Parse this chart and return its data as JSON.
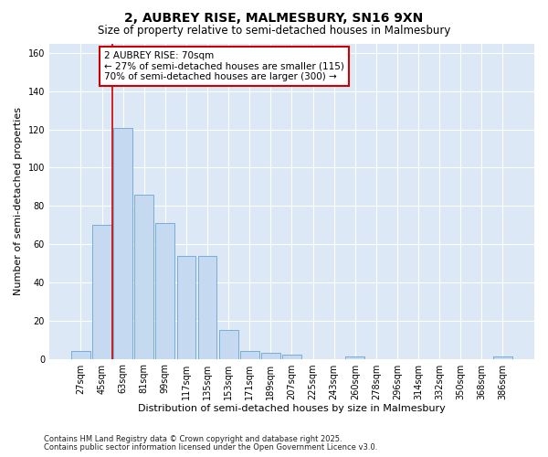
{
  "title": "2, AUBREY RISE, MALMESBURY, SN16 9XN",
  "subtitle": "Size of property relative to semi-detached houses in Malmesbury",
  "xlabel": "Distribution of semi-detached houses by size in Malmesbury",
  "ylabel": "Number of semi-detached properties",
  "categories": [
    "27sqm",
    "45sqm",
    "63sqm",
    "81sqm",
    "99sqm",
    "117sqm",
    "135sqm",
    "153sqm",
    "171sqm",
    "189sqm",
    "207sqm",
    "225sqm",
    "243sqm",
    "260sqm",
    "278sqm",
    "296sqm",
    "314sqm",
    "332sqm",
    "350sqm",
    "368sqm",
    "386sqm"
  ],
  "values": [
    4,
    70,
    121,
    86,
    71,
    54,
    54,
    15,
    4,
    3,
    2,
    0,
    0,
    1,
    0,
    0,
    0,
    0,
    0,
    0,
    1
  ],
  "bar_color": "#c5d9f0",
  "bar_edge_color": "#7aadd4",
  "red_line_x": 1.5,
  "annotation_title": "2 AUBREY RISE: 70sqm",
  "annotation_line1": "← 27% of semi-detached houses are smaller (115)",
  "annotation_line2": "70% of semi-detached houses are larger (300) →",
  "annotation_box_facecolor": "#ffffff",
  "annotation_box_edgecolor": "#cc0000",
  "red_line_color": "#cc0000",
  "ylim": [
    0,
    165
  ],
  "yticks": [
    0,
    20,
    40,
    60,
    80,
    100,
    120,
    140,
    160
  ],
  "background_color": "#ffffff",
  "plot_bg_color": "#dce8f5",
  "grid_color": "#ffffff",
  "title_fontsize": 10,
  "subtitle_fontsize": 8.5,
  "axis_label_fontsize": 8,
  "tick_fontsize": 7,
  "annotation_fontsize": 7.5,
  "footer_fontsize": 6,
  "footer1": "Contains HM Land Registry data © Crown copyright and database right 2025.",
  "footer2": "Contains public sector information licensed under the Open Government Licence v3.0."
}
